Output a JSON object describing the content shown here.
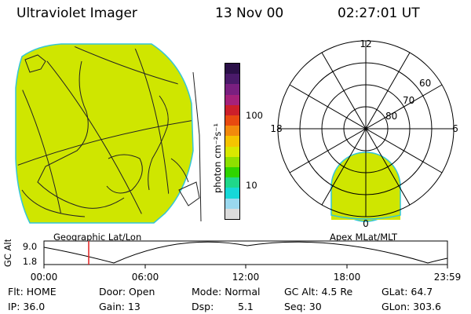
{
  "header": {
    "title": "Ultraviolet Imager",
    "date": "13 Nov 00",
    "time": "02:27:01 UT"
  },
  "left_panel": {
    "label": "Geographic Lat/Lon"
  },
  "right_panel": {
    "label": "Apex MLat/MLT",
    "mlt_labels": {
      "top": "12",
      "left": "18",
      "right": "6",
      "bottom": "0"
    },
    "lat_labels": [
      "60",
      "70",
      "80"
    ]
  },
  "colorbar": {
    "unit": "photon cm⁻²s⁻¹",
    "ticks": [
      "100",
      "10"
    ],
    "colors": [
      "#2b1048",
      "#4a1a6a",
      "#7a1f80",
      "#a5217a",
      "#cc1f2a",
      "#e84a10",
      "#f28a0c",
      "#f5c400",
      "#d8e800",
      "#8ee000",
      "#2fd400",
      "#1fd88a",
      "#16d8d8",
      "#9ad8ee",
      "#dcdcdc"
    ]
  },
  "timeline": {
    "y_axis_label": "GC Alt",
    "y_ticks": [
      "9.0",
      "1.8"
    ],
    "x_ticks": [
      "00:00",
      "06:00",
      "12:00",
      "18:00",
      "23:59"
    ]
  },
  "info": {
    "flt": "Flt: HOME",
    "ip": "IP: 36.0",
    "door": "Door: Open",
    "gain": "Gain: 13",
    "mode": "Mode: Normal",
    "dsp_label": "Dsp:",
    "dsp_value": "5.1",
    "gc_alt": "GC Alt: 4.5 Re",
    "seq": "Seq: 30",
    "glat": "GLat:  64.7",
    "glon": "GLon: 303.6"
  }
}
